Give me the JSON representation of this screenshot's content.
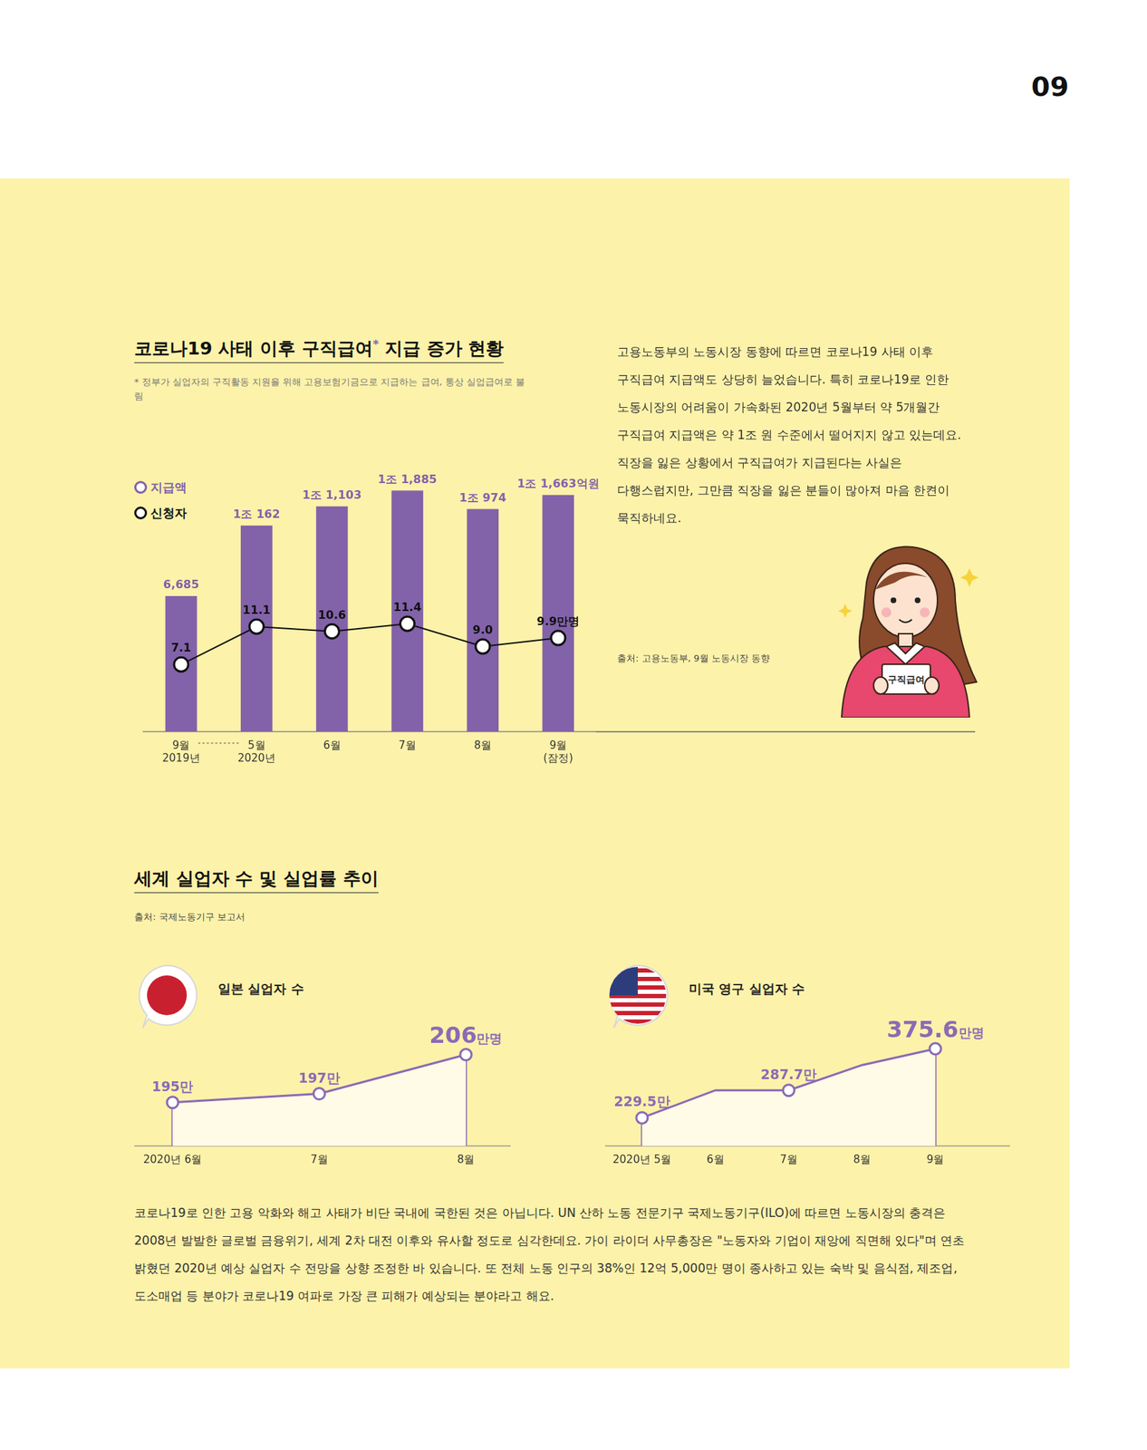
{
  "page_number": "09",
  "chart_data": [
    {
      "type": "bar",
      "title": "코로나19 사태 이후 구직급여* 지급 증가 현황",
      "subtitle": "* 정부가 실업자의 구직활동 지원을 위해 고용보험기금으로 지급하는 급여, 통상 실업급여로 불림",
      "categories": [
        "9월\n2019년",
        "5월\n2020년",
        "6월",
        "7월",
        "8월",
        "9월\n(잠정)"
      ],
      "series": [
        {
          "name": "지급액",
          "type": "bar",
          "color": "#8262a9",
          "values": [
            6685,
            10162,
            11103,
            11885,
            10974,
            11663
          ],
          "value_labels": [
            "6,685",
            "1조 162",
            "1조 1,103",
            "1조 1,885",
            "1조 974",
            "1조 1,663억원"
          ]
        },
        {
          "name": "신청자",
          "type": "line",
          "color": "#111111",
          "marker": "circle",
          "axis": "y2",
          "values": [
            7.1,
            11.1,
            10.6,
            11.4,
            9.0,
            9.9
          ],
          "value_labels": [
            "7.1",
            "11.1",
            "10.6",
            "11.4",
            "9.0",
            "9.9만명"
          ]
        }
      ],
      "ylim": [
        0,
        14000
      ],
      "y2lim": [
        0,
        30
      ],
      "grid": false,
      "legend": "top-left",
      "data_labels": true,
      "tick_labels": "x",
      "source": "출처: 고용노동부, 9월 노동시장 동향"
    },
    {
      "type": "line",
      "title": "일본 실업자 수",
      "categories": [
        "2020년 6월",
        "7월",
        "8월"
      ],
      "values": [
        195,
        197,
        206
      ],
      "value_labels": [
        "195만",
        "197만",
        "206만명"
      ],
      "color": "#8a6bb5",
      "ylim": [
        185,
        210
      ],
      "grid": false,
      "data_labels": true,
      "tick_labels": "x",
      "marker": "circle"
    },
    {
      "type": "line",
      "title": "미국 영구 실업자 수",
      "categories": [
        "2020년 5월",
        "6월",
        "7월",
        "8월",
        "9월"
      ],
      "values": [
        229.5,
        287.7,
        287.7,
        341.1,
        375.6
      ],
      "value_labels": [
        "229.5만",
        null,
        "287.7만",
        null,
        "375.6만명"
      ],
      "color": "#8a6bb5",
      "ylim": [
        170,
        400
      ],
      "grid": false,
      "data_labels": true,
      "tick_labels": "x",
      "marker": "circle"
    }
  ],
  "text": {
    "intro_paragraph": "고용노동부의 노동시장 동향에 따르면 코로나19 사태 이후 구직급여 지급액도 상당히 늘었습니다. 특히 코로나19로 인한 노동시장의 어려움이 가속화된 2020년 5월부터 약 5개월간 구직급여 지급액은 약 1조 원 수준에서 떨어지지 않고 있는데요. 직장을 잃은 상황에서 구직급여가 지급된다는 사실은 다행스럽지만, 그만큼 직장을 잃은 분들이 많아져 마음 한켠이 묵직하네요.",
    "illustration_label": "구직급여",
    "section_title": "세계 실업자 수 및 실업률 추이",
    "section_source": "출처: 국제노동기구 보고서",
    "body_paragraph": "코로나19로 인한 고용 악화와 해고 사태가 비단 국내에 국한된 것은 아닙니다. UN 산하 노동 전문기구 국제노동기구(ILO)에 따르면 노동시장의 충격은 2008년 발발한 글로벌 금융위기, 세계 2차 대전 이후와 유사할 정도로 심각한데요. 가이 라이더 사무총장은 \"노동자와 기업이 재앙에 직면해 있다\"며 연초 밝혔던 2020년 예상 실업자 수 전망을 상향 조정한 바 있습니다. 또 전체 노동 인구의 38%인 12억 5,000만 명이 종사하고 있는 숙박 및 음식점, 제조업, 도소매업 등 분야가 코로나19 여파로 가장 큰 피해가 예상되는 분야라고 해요."
  }
}
